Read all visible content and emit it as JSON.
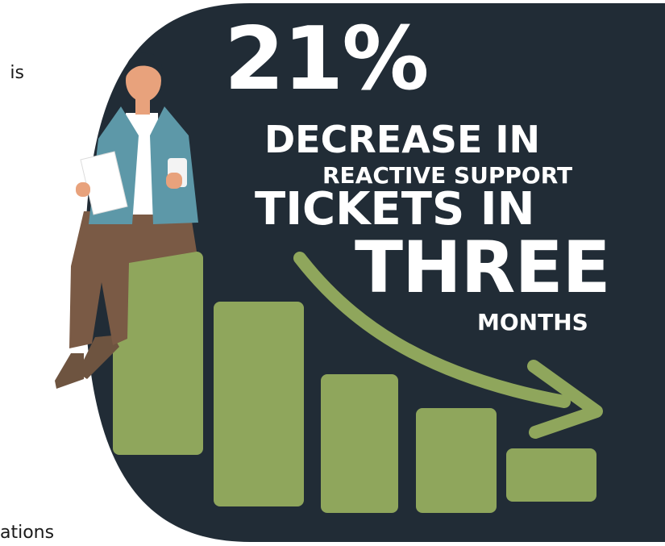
{
  "fragments": {
    "top": "is",
    "bottom": "ations"
  },
  "headline": {
    "percent": "21%",
    "line1": "DECREASE IN",
    "line2": "REACTIVE SUPPORT",
    "line3": "TICKETS IN",
    "line4": "THREE",
    "line5": "MONTHS"
  },
  "colors": {
    "panel": "#212c36",
    "bar": "#8fa65c",
    "arrow": "#8fa65c",
    "text": "#ffffff",
    "jacket": "#5d98a8",
    "trousers": "#7a5a45",
    "shoes": "#6e5440",
    "skin": "#e8a27c",
    "hair": "#212c36"
  },
  "icons": {
    "arrow": "downward-curved-arrow-icon",
    "person": "businessman-sitting-illustration"
  }
}
